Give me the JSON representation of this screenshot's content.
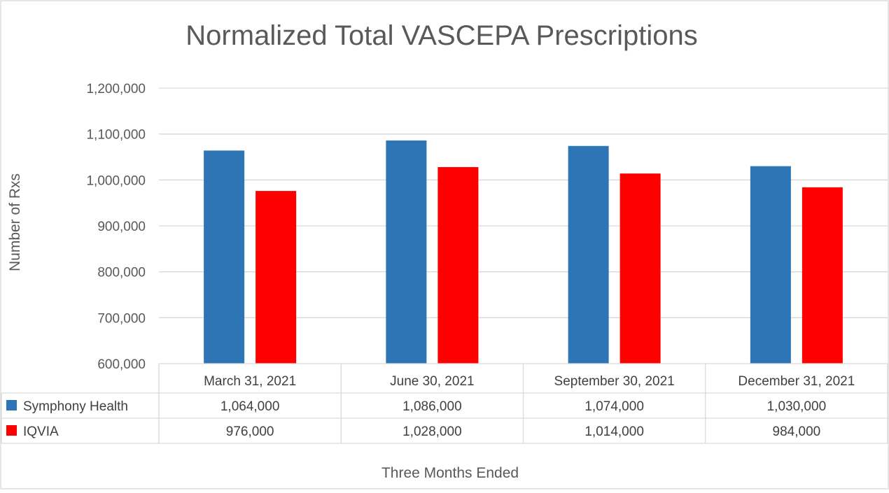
{
  "chart_data": {
    "type": "bar",
    "title": "Normalized Total VASCEPA Prescriptions",
    "xlabel": "Three Months Ended",
    "ylabel": "Number of Rxs",
    "categories": [
      "March 31, 2021",
      "June 30, 2021",
      "September 30, 2021",
      "December 31, 2021"
    ],
    "series": [
      {
        "name": "Symphony Health",
        "color": "#2e75b6",
        "values": [
          1064000,
          1086000,
          1074000,
          1030000
        ],
        "labels": [
          "1,064,000",
          "1,086,000",
          "1,074,000",
          "1,030,000"
        ]
      },
      {
        "name": "IQVIA",
        "color": "#ff0000",
        "values": [
          976000,
          1028000,
          1014000,
          984000
        ],
        "labels": [
          "976,000",
          "1,028,000",
          "1,014,000",
          "984,000"
        ]
      }
    ],
    "ylim": [
      600000,
      1200000
    ],
    "yticks": [
      600000,
      700000,
      800000,
      900000,
      1000000,
      1100000,
      1200000
    ],
    "ytick_labels": [
      "600,000",
      "700,000",
      "800,000",
      "900,000",
      "1,000,000",
      "1,100,000",
      "1,200,000"
    ],
    "grid": true,
    "legend": "data-table"
  }
}
